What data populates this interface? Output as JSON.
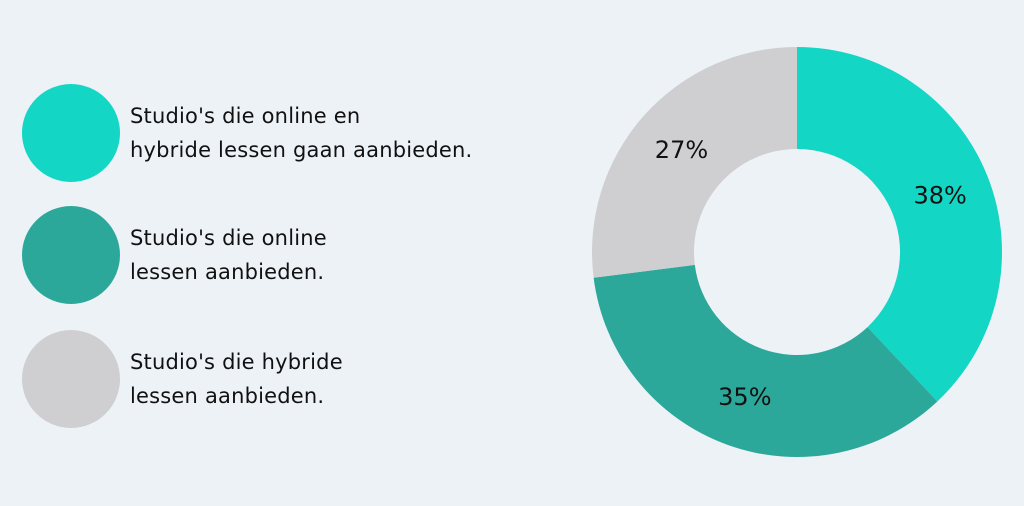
{
  "chart_data": {
    "type": "pie",
    "donut": true,
    "categories": [
      "Studio's die online en\nhybride lessen gaan aanbieden.",
      "Studio's die online\nlessen aanbieden.",
      "Studio's die hybride\nlessen aanbieden."
    ],
    "values": [
      38,
      35,
      27
    ],
    "value_labels": [
      "38%",
      "35%",
      "27%"
    ],
    "colors": [
      "#14d6c4",
      "#2ca89a",
      "#cfcfd1"
    ],
    "legend": "left"
  }
}
